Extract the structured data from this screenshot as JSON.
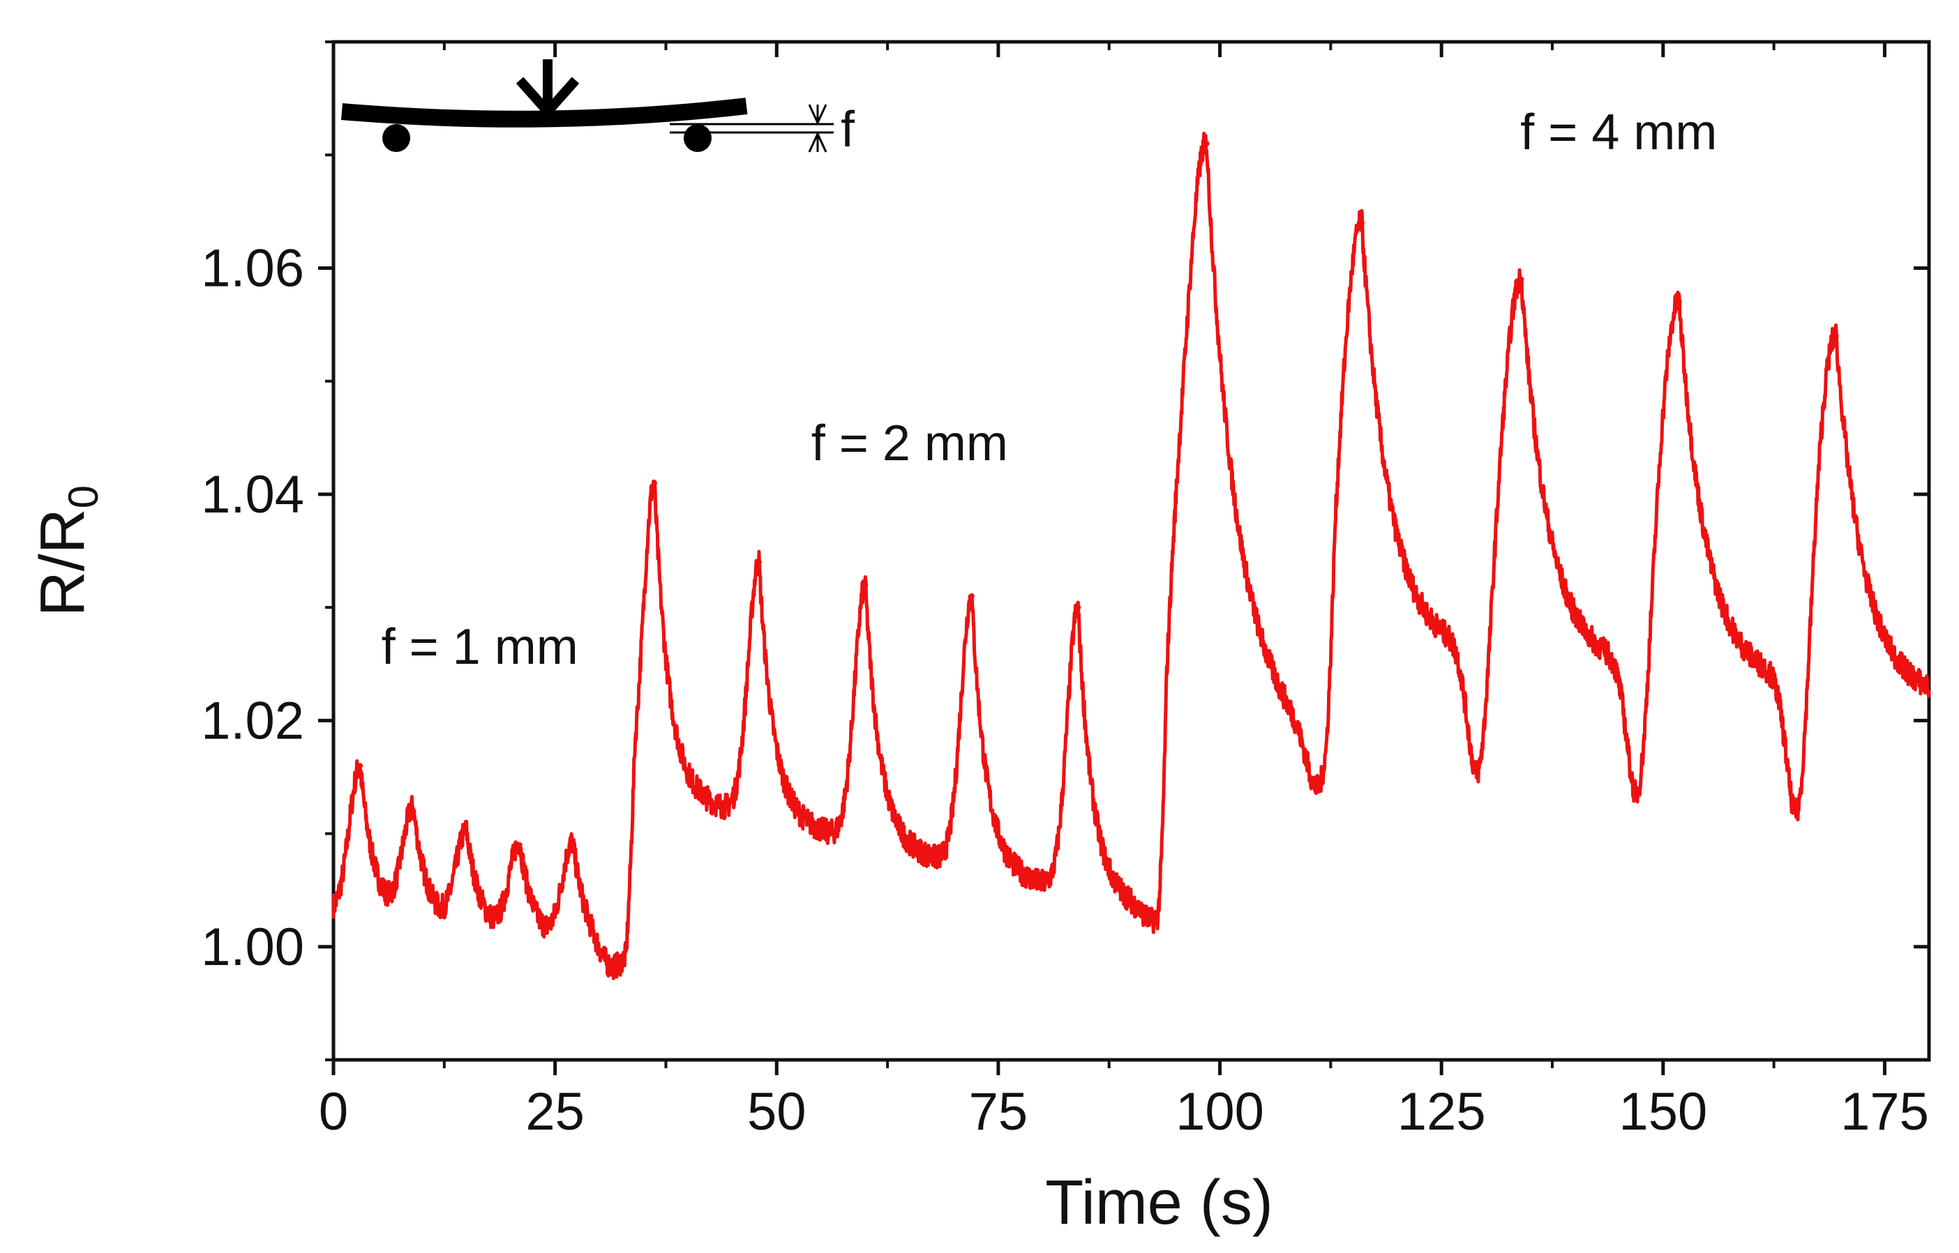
{
  "chart_data": {
    "type": "line",
    "title": "",
    "xlabel": "Time (s)",
    "ylabel_main": "R/R",
    "ylabel_sub": "0",
    "xlim": [
      0,
      180
    ],
    "ylim": [
      0.99,
      1.08
    ],
    "x_ticks": [
      0,
      25,
      50,
      75,
      100,
      125,
      150,
      175
    ],
    "x_tick_labels": [
      "0",
      "25",
      "50",
      "75",
      "100",
      "125",
      "150",
      "175"
    ],
    "y_ticks": [
      1.0,
      1.02,
      1.04,
      1.06
    ],
    "y_tick_labels": [
      "1.00",
      "1.02",
      "1.04",
      "1.06"
    ],
    "grid": false,
    "legend": "none",
    "series": [
      {
        "name": "R/R0",
        "color": "#ee1111",
        "baseline_points": [
          [
            0,
            1.003
          ],
          [
            33,
            0.999
          ],
          [
            34,
            1.014
          ],
          [
            93,
            1.003
          ],
          [
            94,
            1.03
          ],
          [
            112,
            1.016
          ],
          [
            113,
            1.027
          ],
          [
            180,
            1.022
          ]
        ],
        "peaks": [
          {
            "t": 3.0,
            "y": 1.016
          },
          {
            "t": 9.0,
            "y": 1.012
          },
          {
            "t": 15.0,
            "y": 1.01
          },
          {
            "t": 21.0,
            "y": 1.009
          },
          {
            "t": 27.0,
            "y": 1.009
          },
          {
            "t": 36.2,
            "y": 1.041
          },
          {
            "t": 48.0,
            "y": 1.034
          },
          {
            "t": 60.0,
            "y": 1.032
          },
          {
            "t": 72.0,
            "y": 1.031
          },
          {
            "t": 84.0,
            "y": 1.03
          },
          {
            "t": 98.5,
            "y": 1.071
          },
          {
            "t": 116.0,
            "y": 1.064
          },
          {
            "t": 134.0,
            "y": 1.059
          },
          {
            "t": 151.8,
            "y": 1.057
          },
          {
            "t": 169.5,
            "y": 1.054
          }
        ],
        "valleys": [
          {
            "t": 31.5,
            "y": 0.998
          },
          {
            "t": 92.5,
            "y": 1.002
          },
          {
            "t": 111.0,
            "y": 1.013
          },
          {
            "t": 129.0,
            "y": 1.013
          },
          {
            "t": 147.0,
            "y": 1.011
          },
          {
            "t": 165.0,
            "y": 1.009
          }
        ]
      }
    ],
    "annotations": [
      {
        "text": "f = 1 mm",
        "x": 16.5,
        "y": 1.025
      },
      {
        "text": "f = 2 mm",
        "x": 65,
        "y": 1.043
      },
      {
        "text": "f = 4 mm",
        "x": 145,
        "y": 1.0705
      }
    ],
    "inset": {
      "description": "three-point bending schematic",
      "label": "f"
    }
  }
}
